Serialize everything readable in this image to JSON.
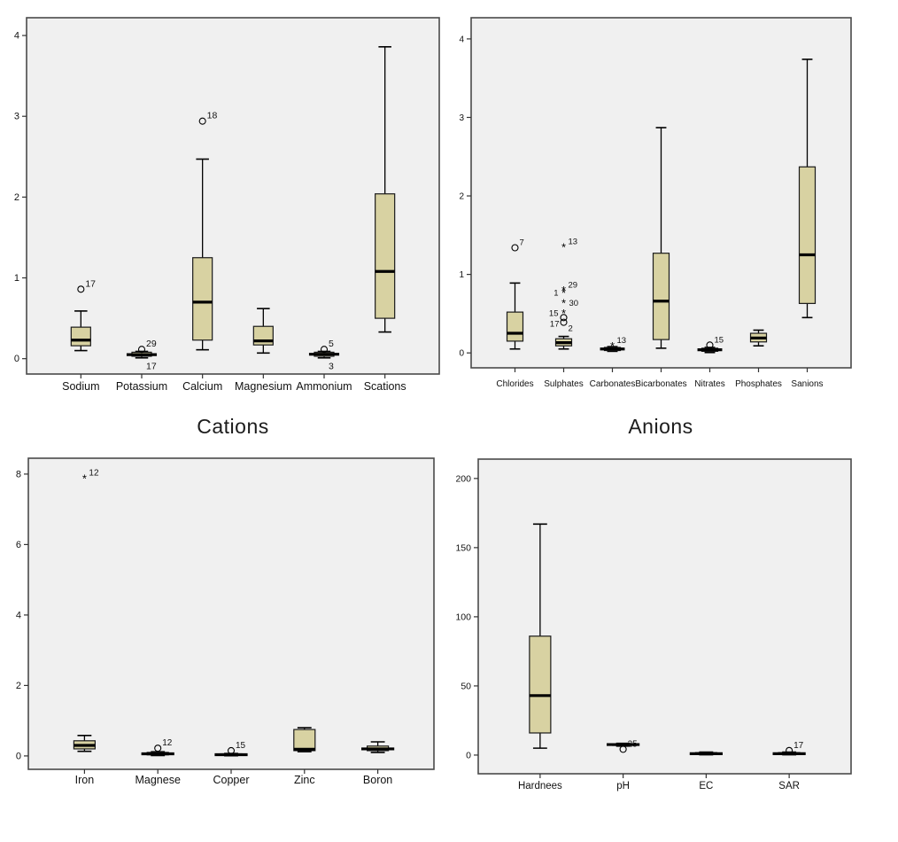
{
  "captions": {
    "cations": "Cations",
    "anions": "Anions"
  },
  "colors": {
    "panel_background": "#f0f0f0",
    "frame_stroke": "#4a4a4a",
    "box_fill": "#d8d2a2",
    "box_stroke": "#1a1a1a",
    "line": "#000000",
    "text": "#111111"
  },
  "chart_data": [
    {
      "id": "cations",
      "type": "boxplot",
      "title": "Cations",
      "ylim": [
        -0.19,
        4.22
      ],
      "yticks": [
        0,
        1,
        2,
        3,
        4
      ],
      "grid": false,
      "categories": [
        "Sodium",
        "Potassium",
        "Calcium",
        "Magnesium",
        "Ammonium",
        "Scations"
      ],
      "boxes": [
        {
          "lo": 0.1,
          "q1": 0.16,
          "median": 0.23,
          "q3": 0.39,
          "hi": 0.59,
          "outliers": [
            {
              "v": 0.86,
              "label": "17",
              "sym": "o",
              "pos": "tr"
            }
          ]
        },
        {
          "lo": 0.01,
          "q1": 0.03,
          "median": 0.05,
          "q3": 0.08,
          "hi": 0.09,
          "outliers": [
            {
              "v": 0.115,
              "label": "29",
              "sym": "o",
              "pos": "tr"
            },
            {
              "v": -0.02,
              "label": "17",
              "sym": "none",
              "pos": "br"
            }
          ]
        },
        {
          "lo": 0.11,
          "q1": 0.23,
          "median": 0.7,
          "q3": 1.25,
          "hi": 2.47,
          "outliers": [
            {
              "v": 2.94,
              "label": "18",
              "sym": "o",
              "pos": "tr"
            }
          ]
        },
        {
          "lo": 0.07,
          "q1": 0.17,
          "median": 0.22,
          "q3": 0.4,
          "hi": 0.62,
          "outliers": []
        },
        {
          "lo": 0.01,
          "q1": 0.03,
          "median": 0.055,
          "q3": 0.08,
          "hi": 0.09,
          "outliers": [
            {
              "v": 0.115,
              "label": "5",
              "sym": "o",
              "pos": "tr"
            },
            {
              "v": -0.02,
              "label": "3",
              "sym": "none",
              "pos": "br"
            }
          ]
        },
        {
          "lo": 0.33,
          "q1": 0.5,
          "median": 1.08,
          "q3": 2.04,
          "hi": 3.86,
          "outliers": []
        }
      ]
    },
    {
      "id": "anions",
      "type": "boxplot",
      "title": "Anions",
      "ylim": [
        -0.19,
        4.27
      ],
      "yticks": [
        0,
        1,
        2,
        3,
        4
      ],
      "grid": false,
      "categories": [
        "Chlorides",
        "Sulphates",
        "Carbonates",
        "Bicarbonates",
        "Nitrates",
        "Phosphates",
        "Sanions"
      ],
      "boxes": [
        {
          "lo": 0.05,
          "q1": 0.15,
          "median": 0.25,
          "q3": 0.52,
          "hi": 0.89,
          "outliers": [
            {
              "v": 1.34,
              "label": "7",
              "sym": "o",
              "pos": "tr"
            }
          ]
        },
        {
          "lo": 0.05,
          "q1": 0.09,
          "median": 0.13,
          "q3": 0.18,
          "hi": 0.21,
          "outliers": [
            {
              "v": 1.35,
              "label": "13",
              "sym": "*",
              "pos": "tr"
            },
            {
              "v": 0.8,
              "label": "29",
              "sym": "*",
              "pos": "tr"
            },
            {
              "v": 0.77,
              "label": "1",
              "sym": "*",
              "pos": "l"
            },
            {
              "v": 0.64,
              "label": "30",
              "sym": "*",
              "pos": "r"
            },
            {
              "v": 0.51,
              "label": "15",
              "sym": "*",
              "pos": "l"
            },
            {
              "v": 0.45,
              "label": "17",
              "sym": "o",
              "pos": "bl"
            },
            {
              "v": 0.39,
              "label": "2",
              "sym": "o",
              "pos": "br"
            }
          ]
        },
        {
          "lo": 0.02,
          "q1": 0.03,
          "median": 0.05,
          "q3": 0.07,
          "hi": 0.08,
          "outliers": [
            {
              "v": 0.09,
              "label": "13",
              "sym": "*",
              "pos": "tr"
            }
          ]
        },
        {
          "lo": 0.06,
          "q1": 0.17,
          "median": 0.66,
          "q3": 1.27,
          "hi": 2.87,
          "outliers": []
        },
        {
          "lo": 0.005,
          "q1": 0.02,
          "median": 0.04,
          "q3": 0.06,
          "hi": 0.07,
          "outliers": [
            {
              "v": 0.1,
              "label": "15",
              "sym": "o",
              "pos": "tr"
            }
          ]
        },
        {
          "lo": 0.09,
          "q1": 0.14,
          "median": 0.19,
          "q3": 0.25,
          "hi": 0.29,
          "outliers": []
        },
        {
          "lo": 0.45,
          "q1": 0.63,
          "median": 1.25,
          "q3": 2.37,
          "hi": 3.74,
          "outliers": []
        }
      ]
    },
    {
      "id": "metals",
      "type": "boxplot",
      "title": "",
      "ylim": [
        -0.38,
        8.45
      ],
      "yticks": [
        0,
        2,
        4,
        6,
        8
      ],
      "grid": false,
      "categories": [
        "Iron",
        "Magnese",
        "Copper",
        "Zinc",
        "Boron"
      ],
      "boxes": [
        {
          "lo": 0.13,
          "q1": 0.2,
          "median": 0.3,
          "q3": 0.43,
          "hi": 0.58,
          "outliers": [
            {
              "v": 7.88,
              "label": "12",
              "sym": "*",
              "pos": "tr"
            }
          ]
        },
        {
          "lo": 0.01,
          "q1": 0.03,
          "median": 0.06,
          "q3": 0.1,
          "hi": 0.12,
          "outliers": [
            {
              "v": 0.22,
              "label": "12",
              "sym": "o",
              "pos": "tr"
            }
          ]
        },
        {
          "lo": 0.005,
          "q1": 0.015,
          "median": 0.035,
          "q3": 0.06,
          "hi": 0.07,
          "outliers": [
            {
              "v": 0.15,
              "label": "15",
              "sym": "o",
              "pos": "tr"
            }
          ]
        },
        {
          "lo": 0.12,
          "q1": 0.15,
          "median": 0.19,
          "q3": 0.75,
          "hi": 0.8,
          "outliers": []
        },
        {
          "lo": 0.1,
          "q1": 0.15,
          "median": 0.2,
          "q3": 0.28,
          "hi": 0.4,
          "outliers": []
        }
      ]
    },
    {
      "id": "parameters",
      "type": "boxplot",
      "title": "",
      "ylim": [
        -13.5,
        214
      ],
      "yticks": [
        0,
        50,
        100,
        150,
        200
      ],
      "grid": false,
      "categories": [
        "Hardnees",
        "pH",
        "EC",
        "SAR"
      ],
      "boxes": [
        {
          "lo": 5,
          "q1": 16,
          "median": 43,
          "q3": 86,
          "hi": 167,
          "outliers": []
        },
        {
          "lo": 6.5,
          "q1": 7.0,
          "median": 7.6,
          "q3": 8.1,
          "hi": 8.5,
          "outliers": [
            {
              "v": 4.2,
              "label": "25",
              "sym": "o",
              "pos": "tr"
            }
          ]
        },
        {
          "lo": 0.2,
          "q1": 0.5,
          "median": 1.0,
          "q3": 1.8,
          "hi": 2.2,
          "outliers": []
        },
        {
          "lo": 0.2,
          "q1": 0.5,
          "median": 1.0,
          "q3": 1.8,
          "hi": 2.2,
          "outliers": [
            {
              "v": 3.3,
              "label": "17",
              "sym": "o",
              "pos": "tr"
            }
          ]
        }
      ]
    }
  ]
}
